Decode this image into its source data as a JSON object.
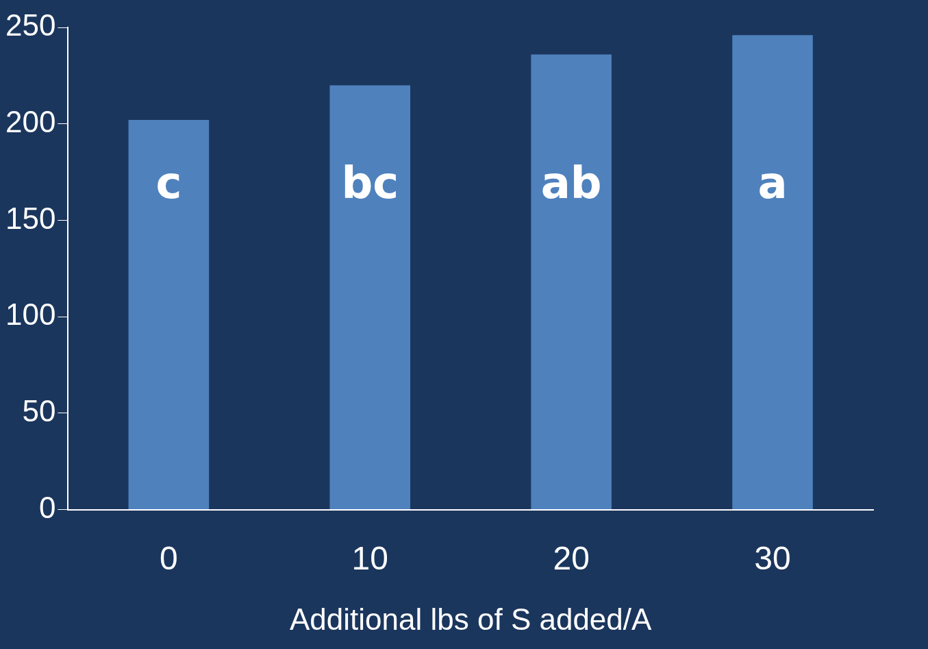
{
  "chart_data": {
    "type": "bar",
    "xlabel": "Additional lbs of S added/A",
    "categories": [
      "0",
      "10",
      "20",
      "30"
    ],
    "values": [
      202,
      220,
      236,
      246
    ],
    "color": "#4f81bd",
    "ylim": [
      0,
      250
    ],
    "yticks": [
      0,
      50,
      100,
      150,
      200,
      250
    ],
    "grid": false,
    "legend": false,
    "annotations": [
      "c",
      "bc",
      "ab",
      "a"
    ]
  }
}
